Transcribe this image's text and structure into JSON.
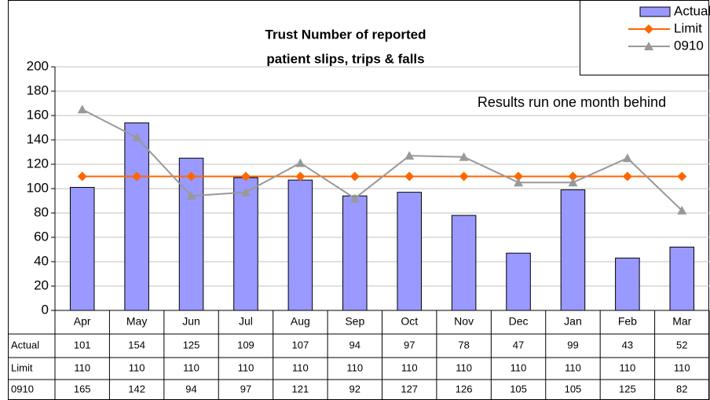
{
  "chart_data": {
    "type": "bar",
    "title": [
      "Trust Number of reported",
      "patient slips, trips & falls"
    ],
    "annotation": "Results run one month behind",
    "categories": [
      "Apr",
      "May",
      "Jun",
      "Jul",
      "Aug",
      "Sep",
      "Oct",
      "Nov",
      "Dec",
      "Jan",
      "Feb",
      "Mar"
    ],
    "series": [
      {
        "name": "Actual",
        "type": "bar",
        "color": "#9999ff",
        "values": [
          101,
          154,
          125,
          109,
          107,
          94,
          97,
          78,
          47,
          99,
          43,
          52
        ]
      },
      {
        "name": "Limit",
        "type": "line",
        "marker": "diamond",
        "color": "#ff6600",
        "values": [
          110,
          110,
          110,
          110,
          110,
          110,
          110,
          110,
          110,
          110,
          110,
          110
        ]
      },
      {
        "name": "0910",
        "type": "line",
        "marker": "triangle",
        "color": "#999999",
        "values": [
          165,
          142,
          94,
          97,
          121,
          92,
          127,
          126,
          105,
          105,
          125,
          82
        ]
      }
    ],
    "ylim": [
      0,
      200
    ],
    "yticks": [
      0,
      20,
      40,
      60,
      80,
      100,
      120,
      140,
      160,
      180,
      200
    ],
    "grid": true,
    "legend": "top-right",
    "data_table": true
  }
}
